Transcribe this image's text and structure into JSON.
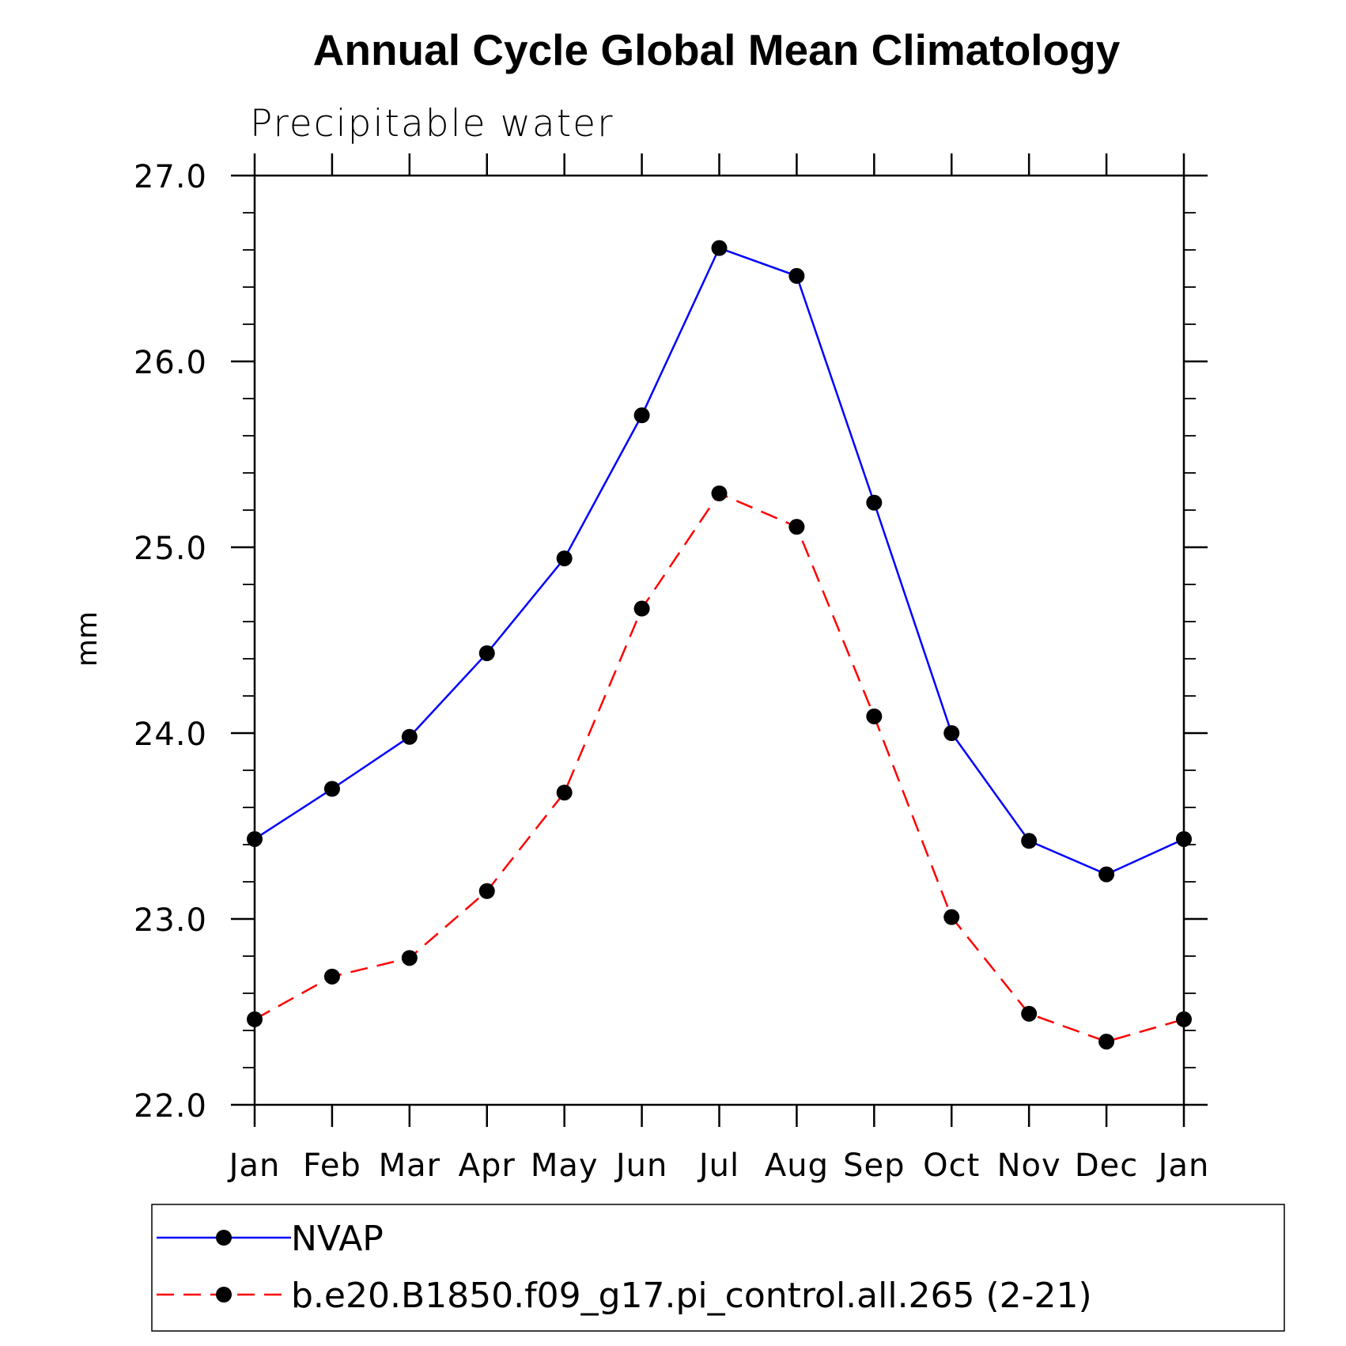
{
  "chart_data": {
    "type": "line",
    "title": "Annual Cycle Global Mean Climatology",
    "subtitle": "Precipitable water",
    "xlabel": "",
    "ylabel": "mm",
    "categories": [
      "Jan",
      "Feb",
      "Mar",
      "Apr",
      "May",
      "Jun",
      "Jul",
      "Aug",
      "Sep",
      "Oct",
      "Nov",
      "Dec",
      "Jan"
    ],
    "ylim": [
      22.0,
      27.0
    ],
    "yticks": [
      "22.0",
      "23.0",
      "24.0",
      "25.0",
      "26.0",
      "27.0"
    ],
    "legend_position": "bottom",
    "series": [
      {
        "name": "NVAP",
        "color": "#0000ff",
        "line_style": "solid",
        "marker": "filled-circle",
        "values": [
          23.43,
          23.7,
          23.98,
          24.43,
          24.94,
          25.71,
          26.61,
          26.46,
          25.24,
          24.0,
          23.42,
          23.24,
          23.43
        ]
      },
      {
        "name": "b.e20.B1850.f09_g17.pi_control.all.265 (2-21)",
        "color": "#ff0000",
        "line_style": "dashed",
        "marker": "filled-circle",
        "values": [
          22.46,
          22.69,
          22.79,
          23.15,
          23.68,
          24.67,
          25.29,
          25.11,
          24.09,
          23.01,
          22.49,
          22.34,
          22.46
        ]
      }
    ]
  }
}
